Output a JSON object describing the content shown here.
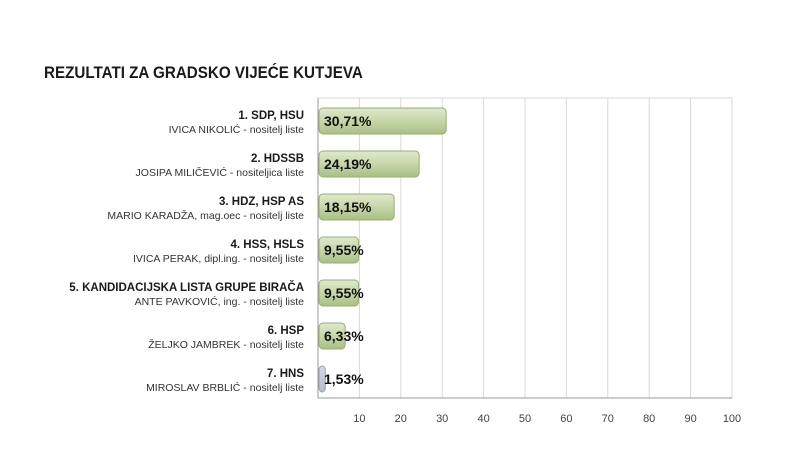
{
  "title": "REZULTATI ZA GRADSKO VIJEĆE KUTJEVA",
  "colors": {
    "bar_fill": "#c6d6a9",
    "bar_stroke": "#97ad74",
    "bar_hns": "#b7bcc8",
    "grid": "#d9d9d9"
  },
  "chart_data": {
    "type": "bar",
    "orientation": "horizontal",
    "title": "REZULTATI ZA GRADSKO VIJEĆE KUTJEVA",
    "categories": [
      "1. SDP, HSU",
      "2. HDSSB",
      "3. HDZ, HSP AS",
      "4. HSS, HSLS",
      "5. KANDIDACIJSKA LISTA GRUPE BIRAČA",
      "6. HSP",
      "7. HNS"
    ],
    "subtitles": [
      "IVICA NIKOLIĆ - nositelj liste",
      "JOSIPA MILIČEVIĆ - nositeljica liste",
      "MARIO KARADŽA, mag.oec - nositelj liste",
      "IVICA PERAK, dipl.ing. - nositelj liste",
      "ANTE PAVKOVIĆ, ing. - nositelj liste",
      "ŽELJKO JAMBREK - nositelj liste",
      "MIROSLAV BRBLIĆ - nositelj liste"
    ],
    "values": [
      30.71,
      24.19,
      18.15,
      9.55,
      9.55,
      6.33,
      1.53
    ],
    "value_labels": [
      "30,71%",
      "24,19%",
      "18,15%",
      "9,55%",
      "9,55%",
      "6,33%",
      "1,53%"
    ],
    "xticks": [
      "10",
      "20",
      "30",
      "40",
      "50",
      "60",
      "70",
      "80",
      "90",
      "100"
    ],
    "xlim": [
      0,
      100
    ],
    "grid": true
  }
}
